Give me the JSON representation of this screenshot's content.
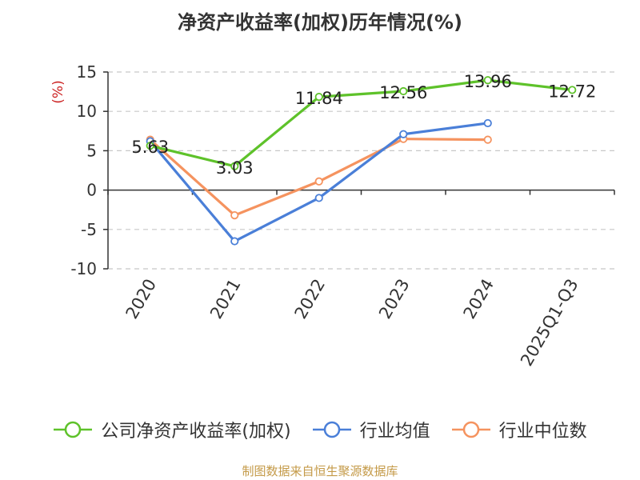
{
  "chart_data": {
    "type": "line",
    "title": "净资产收益率(加权)历年情况(%)",
    "ylabel": "(%)",
    "categories": [
      "2020",
      "2021",
      "2022",
      "2023",
      "2024",
      "2025Q1-Q3"
    ],
    "ylim": [
      -10,
      15
    ],
    "yticks": [
      15,
      10,
      5,
      0,
      -5,
      -10
    ],
    "grid": true,
    "legend_position": "bottom",
    "series": [
      {
        "name": "公司净资产收益率(加权)",
        "color": "#5ec22a",
        "values": [
          5.63,
          3.03,
          11.84,
          12.56,
          13.96,
          12.72
        ],
        "labels": [
          "5.63",
          "3.03",
          "11.84",
          "12.56",
          "13.96",
          "12.72"
        ]
      },
      {
        "name": "行业均值",
        "color": "#4a7fd8",
        "values": [
          6.2,
          -6.5,
          -1.0,
          7.1,
          8.5,
          null
        ]
      },
      {
        "name": "行业中位数",
        "color": "#f5935f",
        "values": [
          6.4,
          -3.2,
          1.1,
          6.5,
          6.4,
          null
        ]
      }
    ]
  },
  "source": "制图数据来自恒生聚源数据库"
}
